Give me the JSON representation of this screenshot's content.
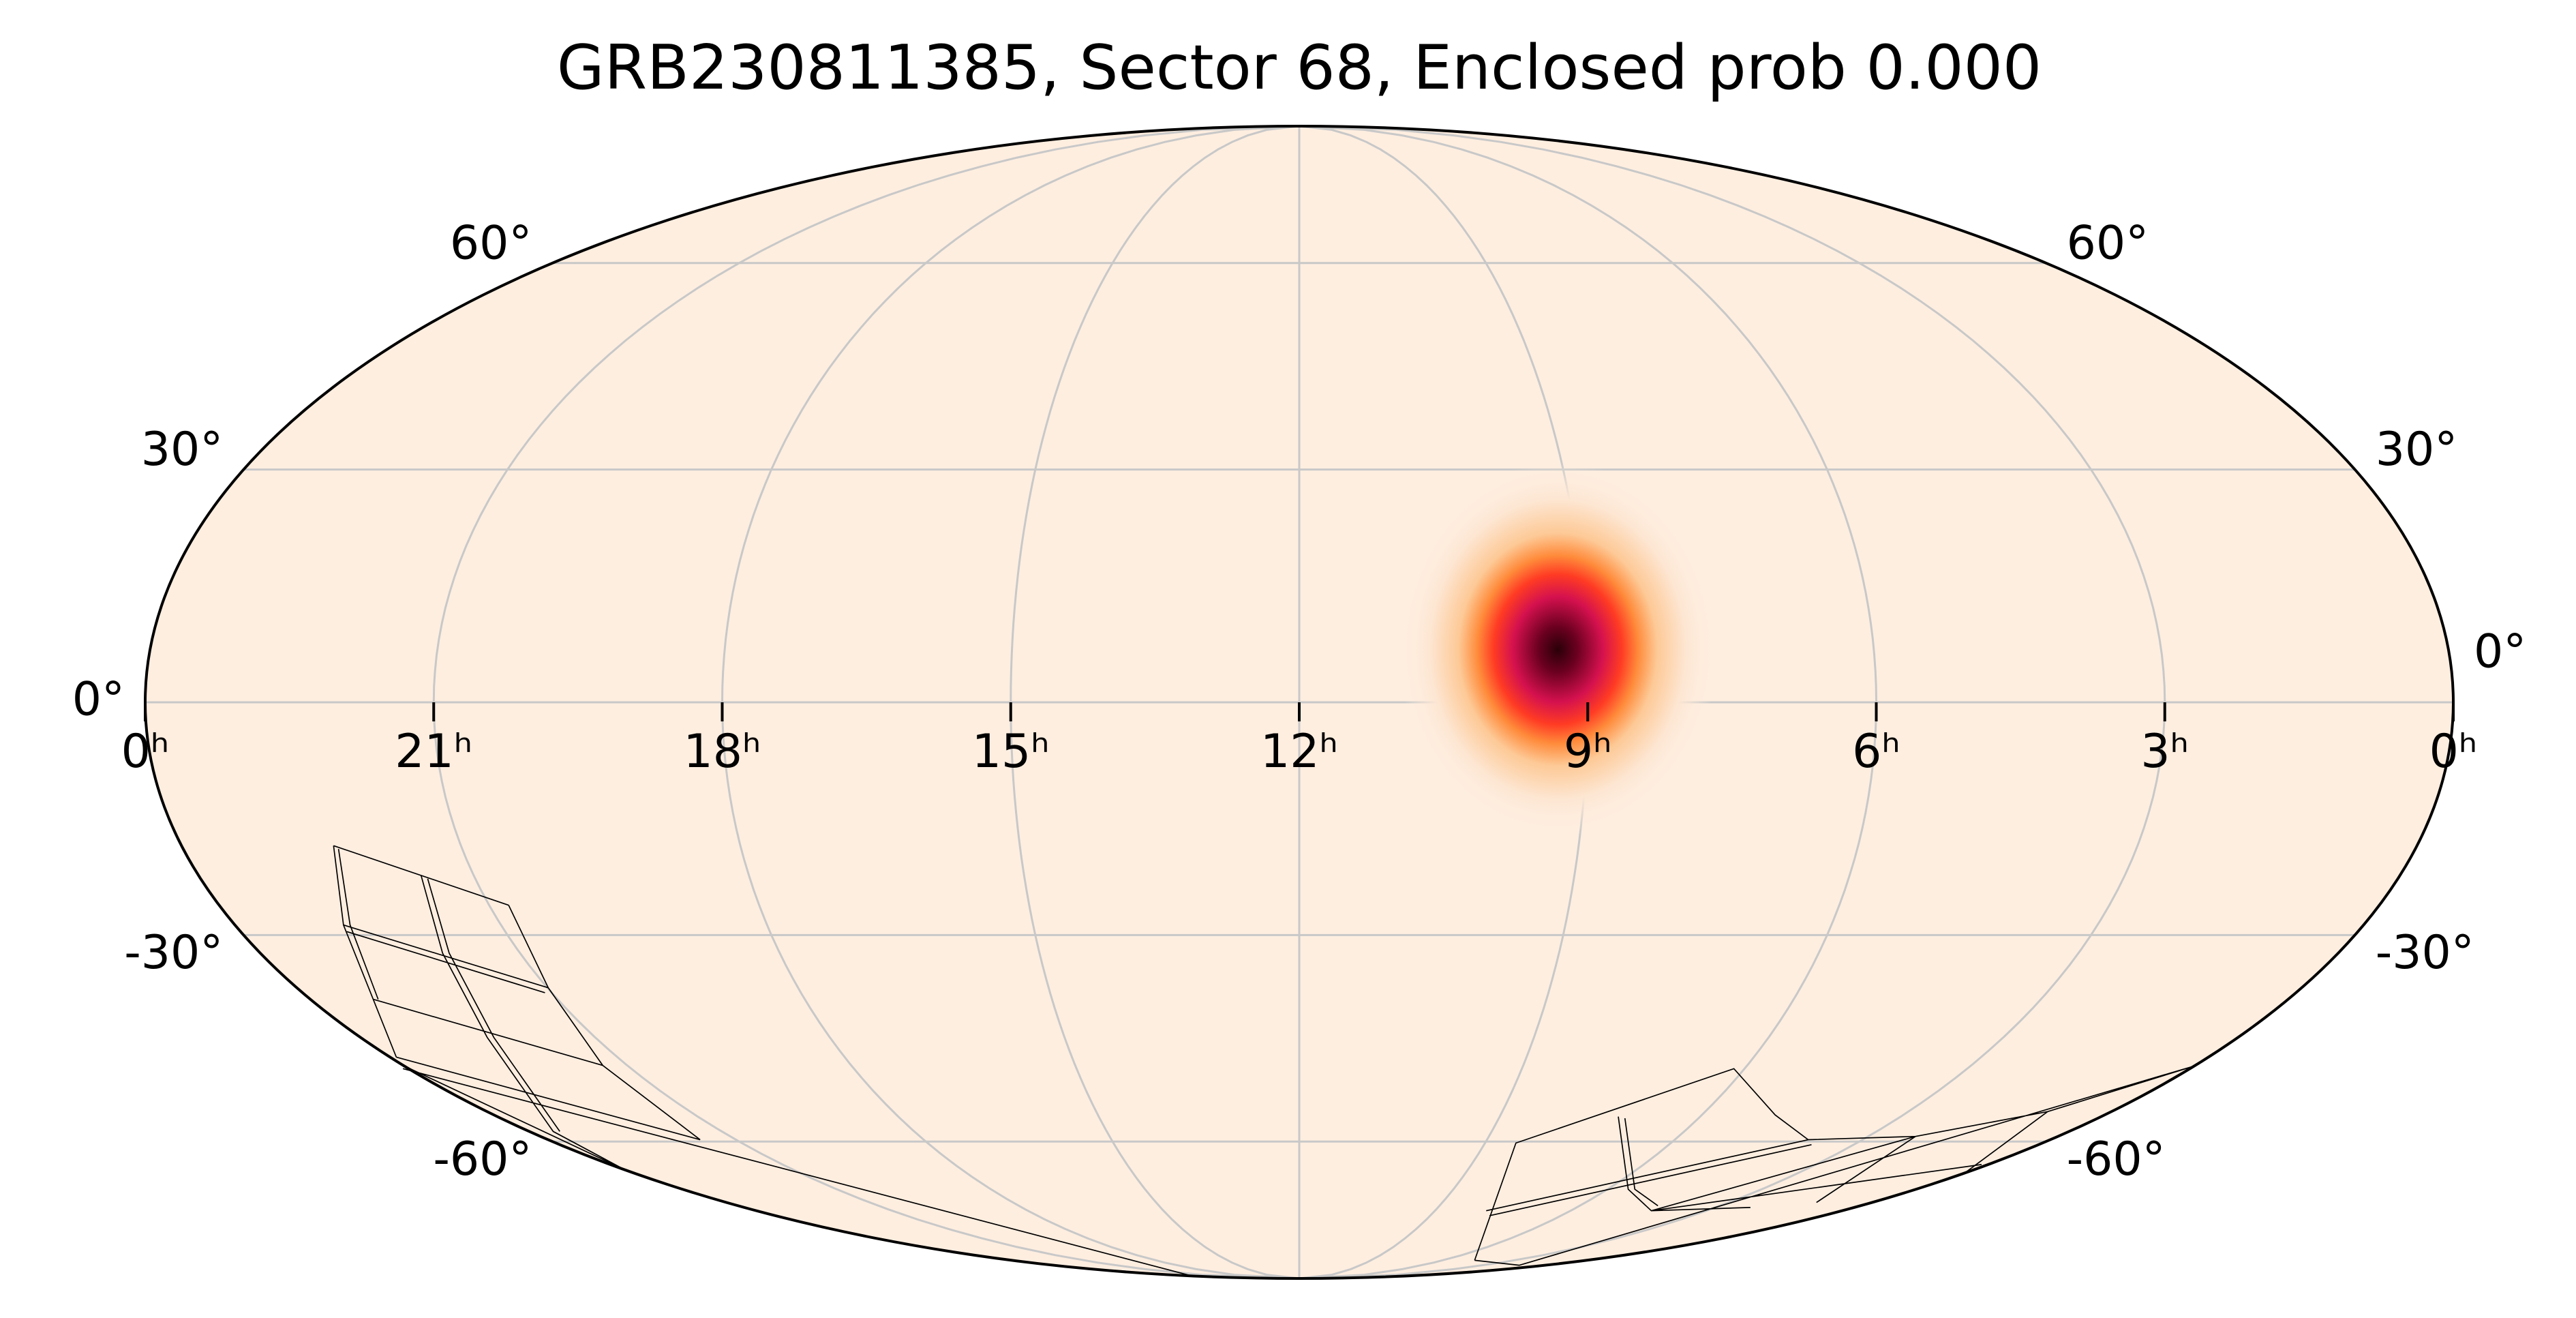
{
  "chart_data": {
    "type": "mollweide",
    "title": "GRB230811385, Sector 68, Enclosed prob 0.000",
    "xlim": [
      24,
      0
    ],
    "xticks": [
      {
        "value": 24,
        "label": "0ʰ"
      },
      {
        "value": 21,
        "label": "21ʰ"
      },
      {
        "value": 18,
        "label": "18ʰ"
      },
      {
        "value": 15,
        "label": "15ʰ"
      },
      {
        "value": 12,
        "label": "12ʰ"
      },
      {
        "value": 9,
        "label": "9ʰ"
      },
      {
        "value": 6,
        "label": "6ʰ"
      },
      {
        "value": 3,
        "label": "3ʰ"
      },
      {
        "value": 0,
        "label": "0ʰ"
      }
    ],
    "ylim": [
      -90,
      90
    ],
    "yticks": [
      {
        "value": -60,
        "label": "-60°"
      },
      {
        "value": -30,
        "label": "-30°"
      },
      {
        "value": 0,
        "label": "0°"
      },
      {
        "value": 30,
        "label": "30°"
      },
      {
        "value": 60,
        "label": "60°"
      }
    ],
    "grid": true,
    "hotspot": {
      "x": 9.3,
      "y": 6.7
    }
  }
}
